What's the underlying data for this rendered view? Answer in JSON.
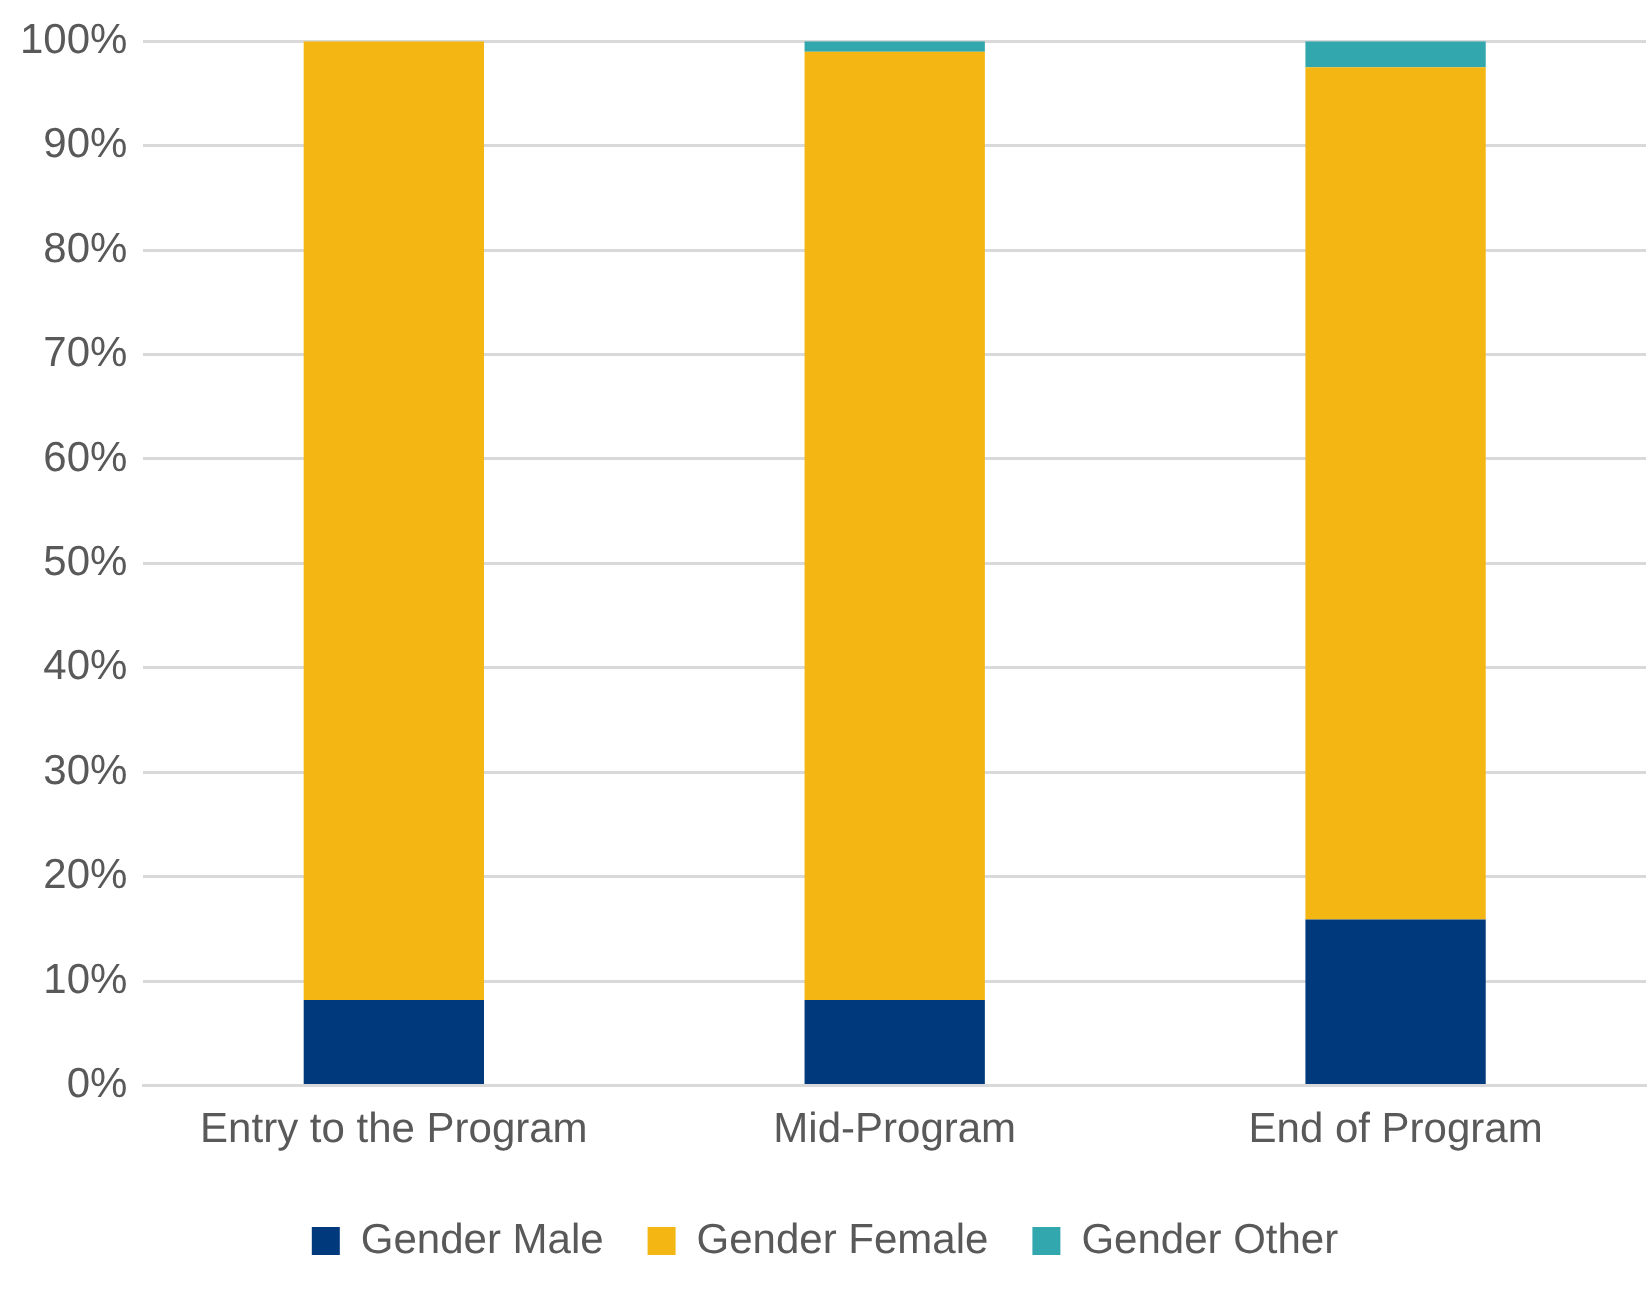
{
  "chart_data": {
    "type": "bar",
    "stacked": true,
    "categories": [
      "Entry to the Program",
      "Mid-Program",
      "End of Program"
    ],
    "series": [
      {
        "name": "Gender Male",
        "color": "#003a7d",
        "values": [
          8.2,
          8.2,
          15.9
        ]
      },
      {
        "name": "Gender Female",
        "color": "#f3b612",
        "values": [
          91.8,
          90.8,
          81.6
        ]
      },
      {
        "name": "Gender Other",
        "color": "#33a7ae",
        "values": [
          0,
          1,
          2.5
        ]
      }
    ],
    "ylim": [
      0,
      100
    ],
    "yticks": [
      {
        "value": 0,
        "label": "0%"
      },
      {
        "value": 10,
        "label": "10%"
      },
      {
        "value": 20,
        "label": "20%"
      },
      {
        "value": 30,
        "label": "30%"
      },
      {
        "value": 40,
        "label": "40%"
      },
      {
        "value": 50,
        "label": "50%"
      },
      {
        "value": 60,
        "label": "60%"
      },
      {
        "value": 70,
        "label": "70%"
      },
      {
        "value": 80,
        "label": "80%"
      },
      {
        "value": 90,
        "label": "90%"
      },
      {
        "value": 100,
        "label": "100%"
      }
    ],
    "grid": "y",
    "legend": "bottom"
  }
}
